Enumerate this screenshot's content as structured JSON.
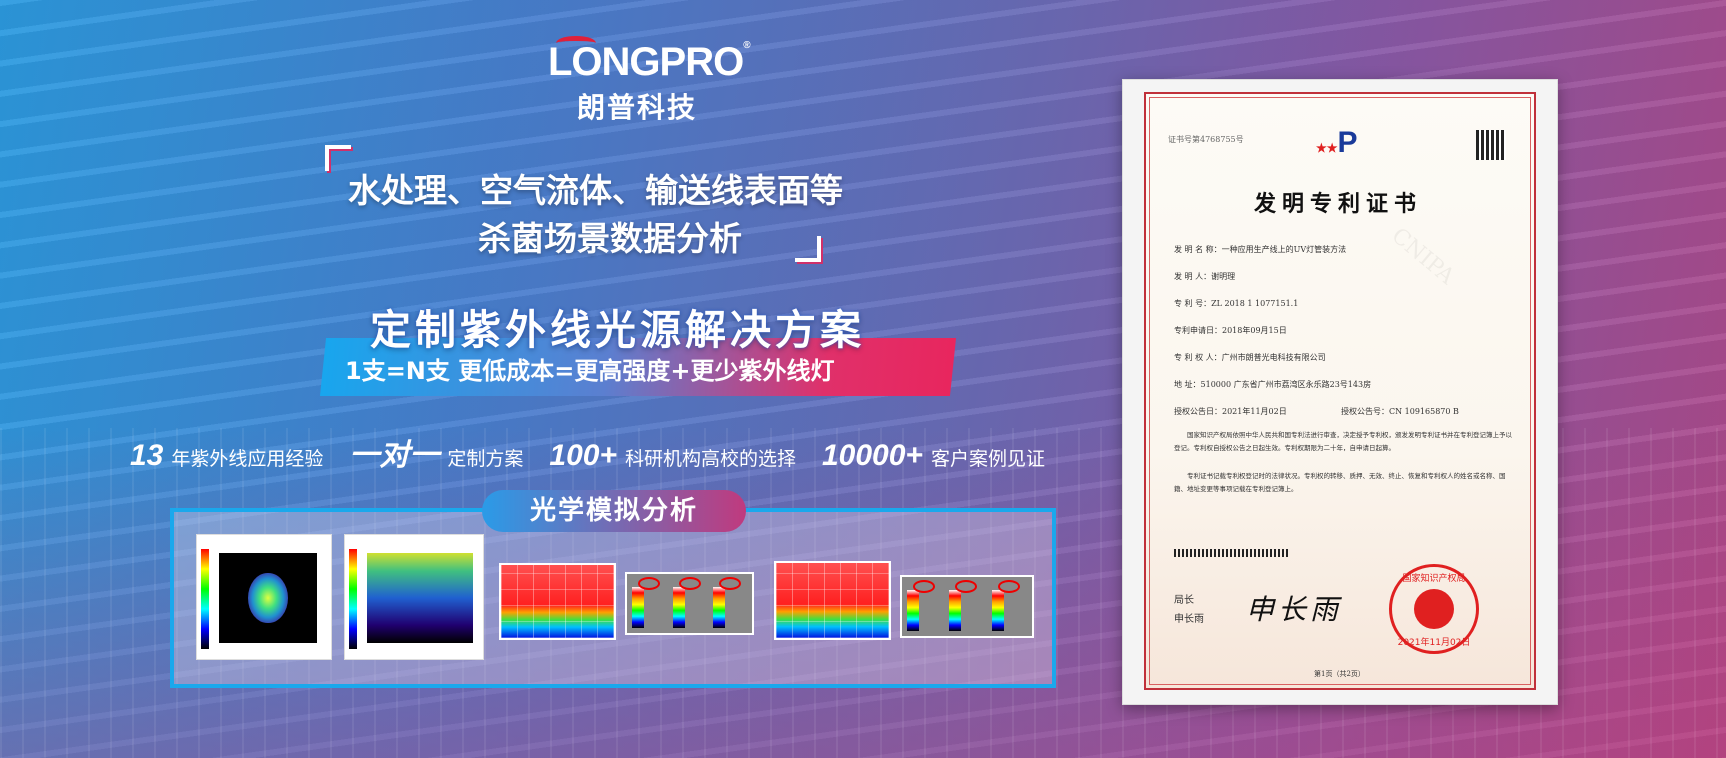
{
  "brand": {
    "logo_text": "LONGPRO",
    "registered": "®",
    "name_cn": "朗普科技"
  },
  "headline": {
    "line1": "水处理、空气流体、输送线表面等",
    "line2": "杀菌场景数据分析"
  },
  "solution": {
    "title": "定制紫外线光源解决方案",
    "subtitle": "1支=N支   更低成本=更高强度+更少紫外线灯"
  },
  "stats": [
    {
      "value": "13",
      "label": "年紫外线应用经验"
    },
    {
      "value": "一对一",
      "label": "定制方案"
    },
    {
      "value": "100+",
      "label": "科研机构高校的选择"
    },
    {
      "value": "10000+",
      "label": "客户案例见证"
    }
  ],
  "optics_panel": {
    "title": "光学模拟分析"
  },
  "certificate": {
    "number": "证书号第4768755号",
    "title": "发明专利证书",
    "fields": [
      "发 明 名 称：一种应用生产线上的UV灯管装方法",
      "发  明  人：谢明理",
      "专  利  号：ZL 2018 1 1077151.1",
      "专利申请日：2018年09月15日",
      "专 利 权 人：广州市朗普光电科技有限公司",
      "地      址：510000 广东省广州市荔湾区永乐路23号143房"
    ],
    "grant_date": "授权公告日：2021年11月02日",
    "grant_no": "授权公告号：CN 109165870 B",
    "body1": "国家知识产权局依照中华人民共和国专利法进行审查，决定授予专利权，颁发发明专利证书并在专利登记簿上予以登记。专利权自授权公告之日起生效。专利权期限为二十年，自申请日起算。",
    "body2": "专利证书记载专利权登记时的法律状况。专利权的转移、质押、无效、终止、恢复和专利权人的姓名或名称、国籍、地址变更等事项记载在专利登记簿上。",
    "signer_title": "局长",
    "signer_name": "申长雨",
    "stamp_text": "国家知识产权局",
    "stamp_date": "2021年11月02日",
    "page": "第1页（共2页）",
    "watermark": "CNIPA"
  },
  "colors": {
    "accent_blue": "#1aa8ec",
    "accent_pink": "#e0306a",
    "logo_red": "#e0203a"
  }
}
